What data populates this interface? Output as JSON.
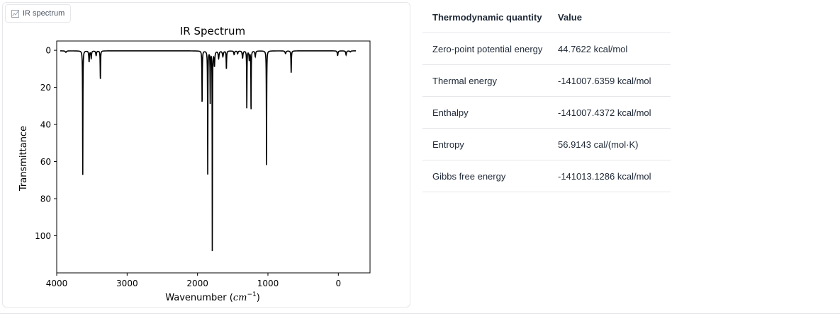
{
  "tab": {
    "label": "IR spectrum",
    "icon": "chart-icon"
  },
  "chart_data": {
    "type": "line",
    "title": "IR Spectrum",
    "xlabel": "Wavenumber (cm⁻¹)",
    "xlabel_main": "Wavenumber (",
    "xlabel_unit": "cm",
    "xlabel_exp": "−1",
    "xlabel_close": ")",
    "ylabel": "Transmittance",
    "xlim": [
      4000,
      -450
    ],
    "ylim": [
      120,
      -5
    ],
    "x_inverted": true,
    "y_inverted": true,
    "xticks": [
      4000,
      3000,
      2000,
      1000,
      0
    ],
    "yticks": [
      0,
      20,
      40,
      60,
      80,
      100
    ],
    "grid": false,
    "line_color": "#000000",
    "baseline": 0.3,
    "x_range": [
      3950,
      -250
    ],
    "peaks": [
      {
        "x": 3870,
        "depth": 0.8,
        "width": 18
      },
      {
        "x": 3630,
        "depth": 67.5,
        "width": 5
      },
      {
        "x": 3540,
        "depth": 6,
        "width": 10
      },
      {
        "x": 3510,
        "depth": 4,
        "width": 10
      },
      {
        "x": 3440,
        "depth": 2.5,
        "width": 12
      },
      {
        "x": 3380,
        "depth": 15.5,
        "width": 6
      },
      {
        "x": 1935,
        "depth": 29,
        "width": 6
      },
      {
        "x": 1855,
        "depth": 67,
        "width": 5
      },
      {
        "x": 1820,
        "depth": 28,
        "width": 5
      },
      {
        "x": 1790,
        "depth": 114,
        "width": 4
      },
      {
        "x": 1760,
        "depth": 8,
        "width": 12
      },
      {
        "x": 1700,
        "depth": 4,
        "width": 14
      },
      {
        "x": 1640,
        "depth": 3,
        "width": 15
      },
      {
        "x": 1590,
        "depth": 10,
        "width": 7
      },
      {
        "x": 1480,
        "depth": 2,
        "width": 12
      },
      {
        "x": 1430,
        "depth": 1.5,
        "width": 12
      },
      {
        "x": 1360,
        "depth": 4,
        "width": 12
      },
      {
        "x": 1300,
        "depth": 32,
        "width": 5
      },
      {
        "x": 1265,
        "depth": 5,
        "width": 10
      },
      {
        "x": 1240,
        "depth": 34,
        "width": 5
      },
      {
        "x": 1180,
        "depth": 3,
        "width": 12
      },
      {
        "x": 1020,
        "depth": 64,
        "width": 5
      },
      {
        "x": 750,
        "depth": 1.5,
        "width": 15
      },
      {
        "x": 670,
        "depth": 12,
        "width": 7
      },
      {
        "x": 10,
        "depth": 2.5,
        "width": 12
      },
      {
        "x": -110,
        "depth": 2.2,
        "width": 12
      },
      {
        "x": -170,
        "depth": 0.6,
        "width": 15
      }
    ]
  },
  "thermo": {
    "headers": {
      "quantity": "Thermodynamic quantity",
      "value": "Value"
    },
    "rows": [
      {
        "quantity": "Zero-point potential energy",
        "value": "44.7622 kcal/mol"
      },
      {
        "quantity": "Thermal energy",
        "value": "-141007.6359 kcal/mol"
      },
      {
        "quantity": "Enthalpy",
        "value": "-141007.4372 kcal/mol"
      },
      {
        "quantity": "Entropy",
        "value": "56.9143 cal/(mol·K)"
      },
      {
        "quantity": "Gibbs free energy",
        "value": "-141013.1286 kcal/mol"
      }
    ]
  }
}
